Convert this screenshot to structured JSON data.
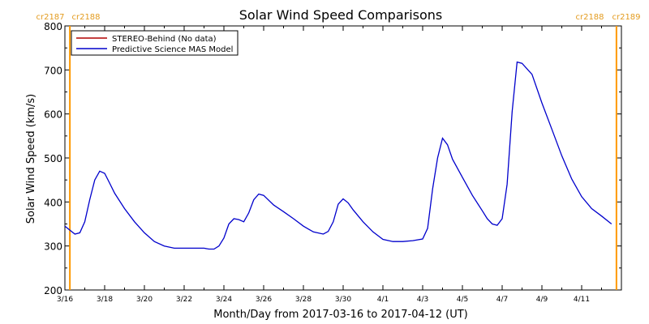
{
  "chart_data": {
    "type": "line",
    "title": "Solar Wind Speed Comparisons",
    "xlabel": "Month/Day from 2017-03-16 to 2017-04-12 (UT)",
    "ylabel": "Solar Wind Speed (km/s)",
    "xlim": [
      "2017-03-16",
      "2017-04-13"
    ],
    "ylim": [
      200,
      800
    ],
    "y_ticks": [
      200,
      300,
      400,
      500,
      600,
      700,
      800
    ],
    "x_ticks": [
      {
        "date": "2017-03-16",
        "label": "3/16"
      },
      {
        "date": "2017-03-18",
        "label": "3/18"
      },
      {
        "date": "2017-03-20",
        "label": "3/20"
      },
      {
        "date": "2017-03-22",
        "label": "3/22"
      },
      {
        "date": "2017-03-24",
        "label": "3/24"
      },
      {
        "date": "2017-03-26",
        "label": "3/26"
      },
      {
        "date": "2017-03-28",
        "label": "3/28"
      },
      {
        "date": "2017-03-30",
        "label": "3/30"
      },
      {
        "date": "2017-04-01",
        "label": "4/1"
      },
      {
        "date": "2017-04-03",
        "label": "4/3"
      },
      {
        "date": "2017-04-05",
        "label": "4/5"
      },
      {
        "date": "2017-04-07",
        "label": "4/7"
      },
      {
        "date": "2017-04-09",
        "label": "4/9"
      },
      {
        "date": "2017-04-11",
        "label": "4/11"
      }
    ],
    "legend_placement": "top-left",
    "series": [
      {
        "name": "STEREO-Behind (No data)",
        "color": "#b00000",
        "x": [],
        "y": []
      },
      {
        "name": "Predictive Science MAS Model",
        "color": "#0000cc",
        "x": [
          "2017-03-16 00:00",
          "2017-03-16 12:00",
          "2017-03-16 18:00",
          "2017-03-17 00:00",
          "2017-03-17 06:00",
          "2017-03-17 12:00",
          "2017-03-17 18:00",
          "2017-03-18 00:00",
          "2017-03-18 06:00",
          "2017-03-18 12:00",
          "2017-03-19 00:00",
          "2017-03-19 12:00",
          "2017-03-20 00:00",
          "2017-03-20 12:00",
          "2017-03-21 00:00",
          "2017-03-21 12:00",
          "2017-03-22 00:00",
          "2017-03-22 12:00",
          "2017-03-23 00:00",
          "2017-03-23 06:00",
          "2017-03-23 12:00",
          "2017-03-23 18:00",
          "2017-03-24 00:00",
          "2017-03-24 06:00",
          "2017-03-24 12:00",
          "2017-03-24 18:00",
          "2017-03-25 00:00",
          "2017-03-25 06:00",
          "2017-03-25 12:00",
          "2017-03-25 18:00",
          "2017-03-26 00:00",
          "2017-03-26 12:00",
          "2017-03-27 00:00",
          "2017-03-27 12:00",
          "2017-03-28 00:00",
          "2017-03-28 12:00",
          "2017-03-29 00:00",
          "2017-03-29 06:00",
          "2017-03-29 12:00",
          "2017-03-29 18:00",
          "2017-03-30 00:00",
          "2017-03-30 06:00",
          "2017-03-30 12:00",
          "2017-03-31 00:00",
          "2017-03-31 12:00",
          "2017-04-01 00:00",
          "2017-04-01 12:00",
          "2017-04-02 00:00",
          "2017-04-02 12:00",
          "2017-04-03 00:00",
          "2017-04-03 06:00",
          "2017-04-03 12:00",
          "2017-04-03 18:00",
          "2017-04-04 00:00",
          "2017-04-04 06:00",
          "2017-04-04 12:00",
          "2017-04-05 00:00",
          "2017-04-05 12:00",
          "2017-04-06 00:00",
          "2017-04-06 06:00",
          "2017-04-06 12:00",
          "2017-04-06 18:00",
          "2017-04-07 00:00",
          "2017-04-07 06:00",
          "2017-04-07 12:00",
          "2017-04-07 18:00",
          "2017-04-08 00:00",
          "2017-04-08 12:00",
          "2017-04-09 00:00",
          "2017-04-09 12:00",
          "2017-04-10 00:00",
          "2017-04-10 12:00",
          "2017-04-11 00:00",
          "2017-04-11 12:00",
          "2017-04-12 00:00",
          "2017-04-12 12:00"
        ],
        "y": [
          345,
          327,
          330,
          355,
          405,
          450,
          470,
          465,
          443,
          420,
          385,
          355,
          330,
          310,
          300,
          295,
          295,
          295,
          295,
          293,
          293,
          300,
          318,
          350,
          362,
          360,
          355,
          375,
          405,
          418,
          415,
          393,
          378,
          362,
          345,
          332,
          327,
          333,
          355,
          395,
          407,
          398,
          382,
          355,
          332,
          315,
          310,
          310,
          312,
          316,
          340,
          430,
          500,
          545,
          530,
          497,
          456,
          415,
          380,
          362,
          350,
          347,
          362,
          440,
          605,
          718,
          715,
          690,
          625,
          565,
          505,
          452,
          412,
          385,
          368,
          350
        ]
      }
    ],
    "annotations": {
      "left_labels": [
        "cr2187",
        "cr2188"
      ],
      "right_labels": [
        "cr2188",
        "cr2189"
      ],
      "left_boundary_date": "2017-03-16 06:00",
      "right_boundary_date": "2017-04-12 18:00",
      "boundary_color": "#ff9900",
      "label_color": "#e39b1e"
    }
  }
}
